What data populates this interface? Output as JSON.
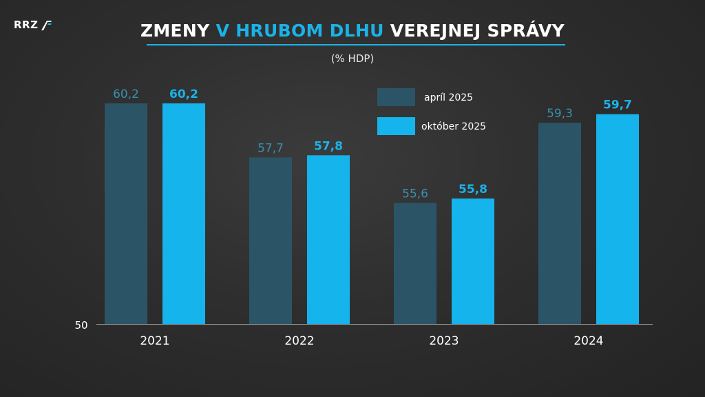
{
  "logo": {
    "text": "RRZ"
  },
  "title": {
    "part1": "ZMENY ",
    "part2": "V HRUBOM DLHU",
    "part3": " VEREJNEJ SPRÁVY"
  },
  "subtitle": "(% HDP)",
  "colors": {
    "april": "#2b5567",
    "april_label": "#3a8fb0",
    "october": "#16b4ec",
    "october_label": "#1ab3e8",
    "accent": "#1ab3e8"
  },
  "chart_data": {
    "type": "bar",
    "categories": [
      "2021",
      "2022",
      "2023",
      "2024"
    ],
    "series": [
      {
        "name": "apríl 2025",
        "values": [
          60.2,
          57.7,
          55.6,
          59.3
        ],
        "labels": [
          "60,2",
          "57,7",
          "55,6",
          "59,3"
        ]
      },
      {
        "name": "október 2025",
        "values": [
          60.2,
          57.8,
          55.8,
          59.7
        ],
        "labels": [
          "60,2",
          "57,8",
          "55,8",
          "59,7"
        ]
      }
    ],
    "ymin": 50,
    "ymin_label": "50",
    "legend_position": "top-center-right"
  }
}
